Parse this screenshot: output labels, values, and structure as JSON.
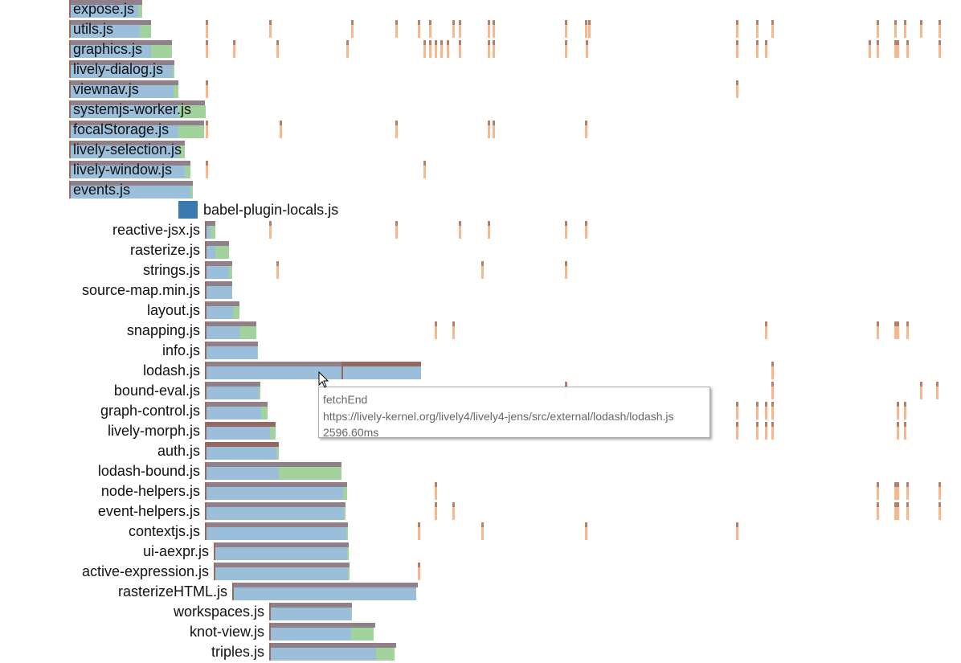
{
  "modules": [
    "expose.js",
    "utils.js",
    "graphics.js",
    "lively-dialog.js",
    "viewnav.js",
    "systemjs-worker.js",
    "focalStorage.js",
    "lively-selection.js",
    "lively-window.js",
    "events.js",
    "babel-plugin-locals.js",
    "reactive-jsx.js",
    "rasterize.js",
    "strings.js",
    "source-map.min.js",
    "layout.js",
    "snapping.js",
    "info.js",
    "lodash.js",
    "bound-eval.js",
    "graph-control.js",
    "lively-morph.js",
    "auth.js",
    "lodash-bound.js",
    "node-helpers.js",
    "event-helpers.js",
    "contextjs.js",
    "ui-aexpr.js",
    "active-expression.js",
    "rasterizeHTML.js",
    "workspaces.js",
    "knot-view.js",
    "triples.js"
  ],
  "tooltip": {
    "event": "fetchEnd",
    "url": "https://lively-kernel.org/lively4/lively4-jens/src/external/lodash/lodash.js",
    "time": "2596.60ms"
  },
  "colors": {
    "fetch": "#9bbedb",
    "eval": "#a3d39c",
    "header": "#8f8089",
    "header_dark": "#946860",
    "edge": "#9a6b5c",
    "tick": "#f9b88c",
    "tick_top": "#b5806a",
    "compiled": "#3a78ad"
  }
}
